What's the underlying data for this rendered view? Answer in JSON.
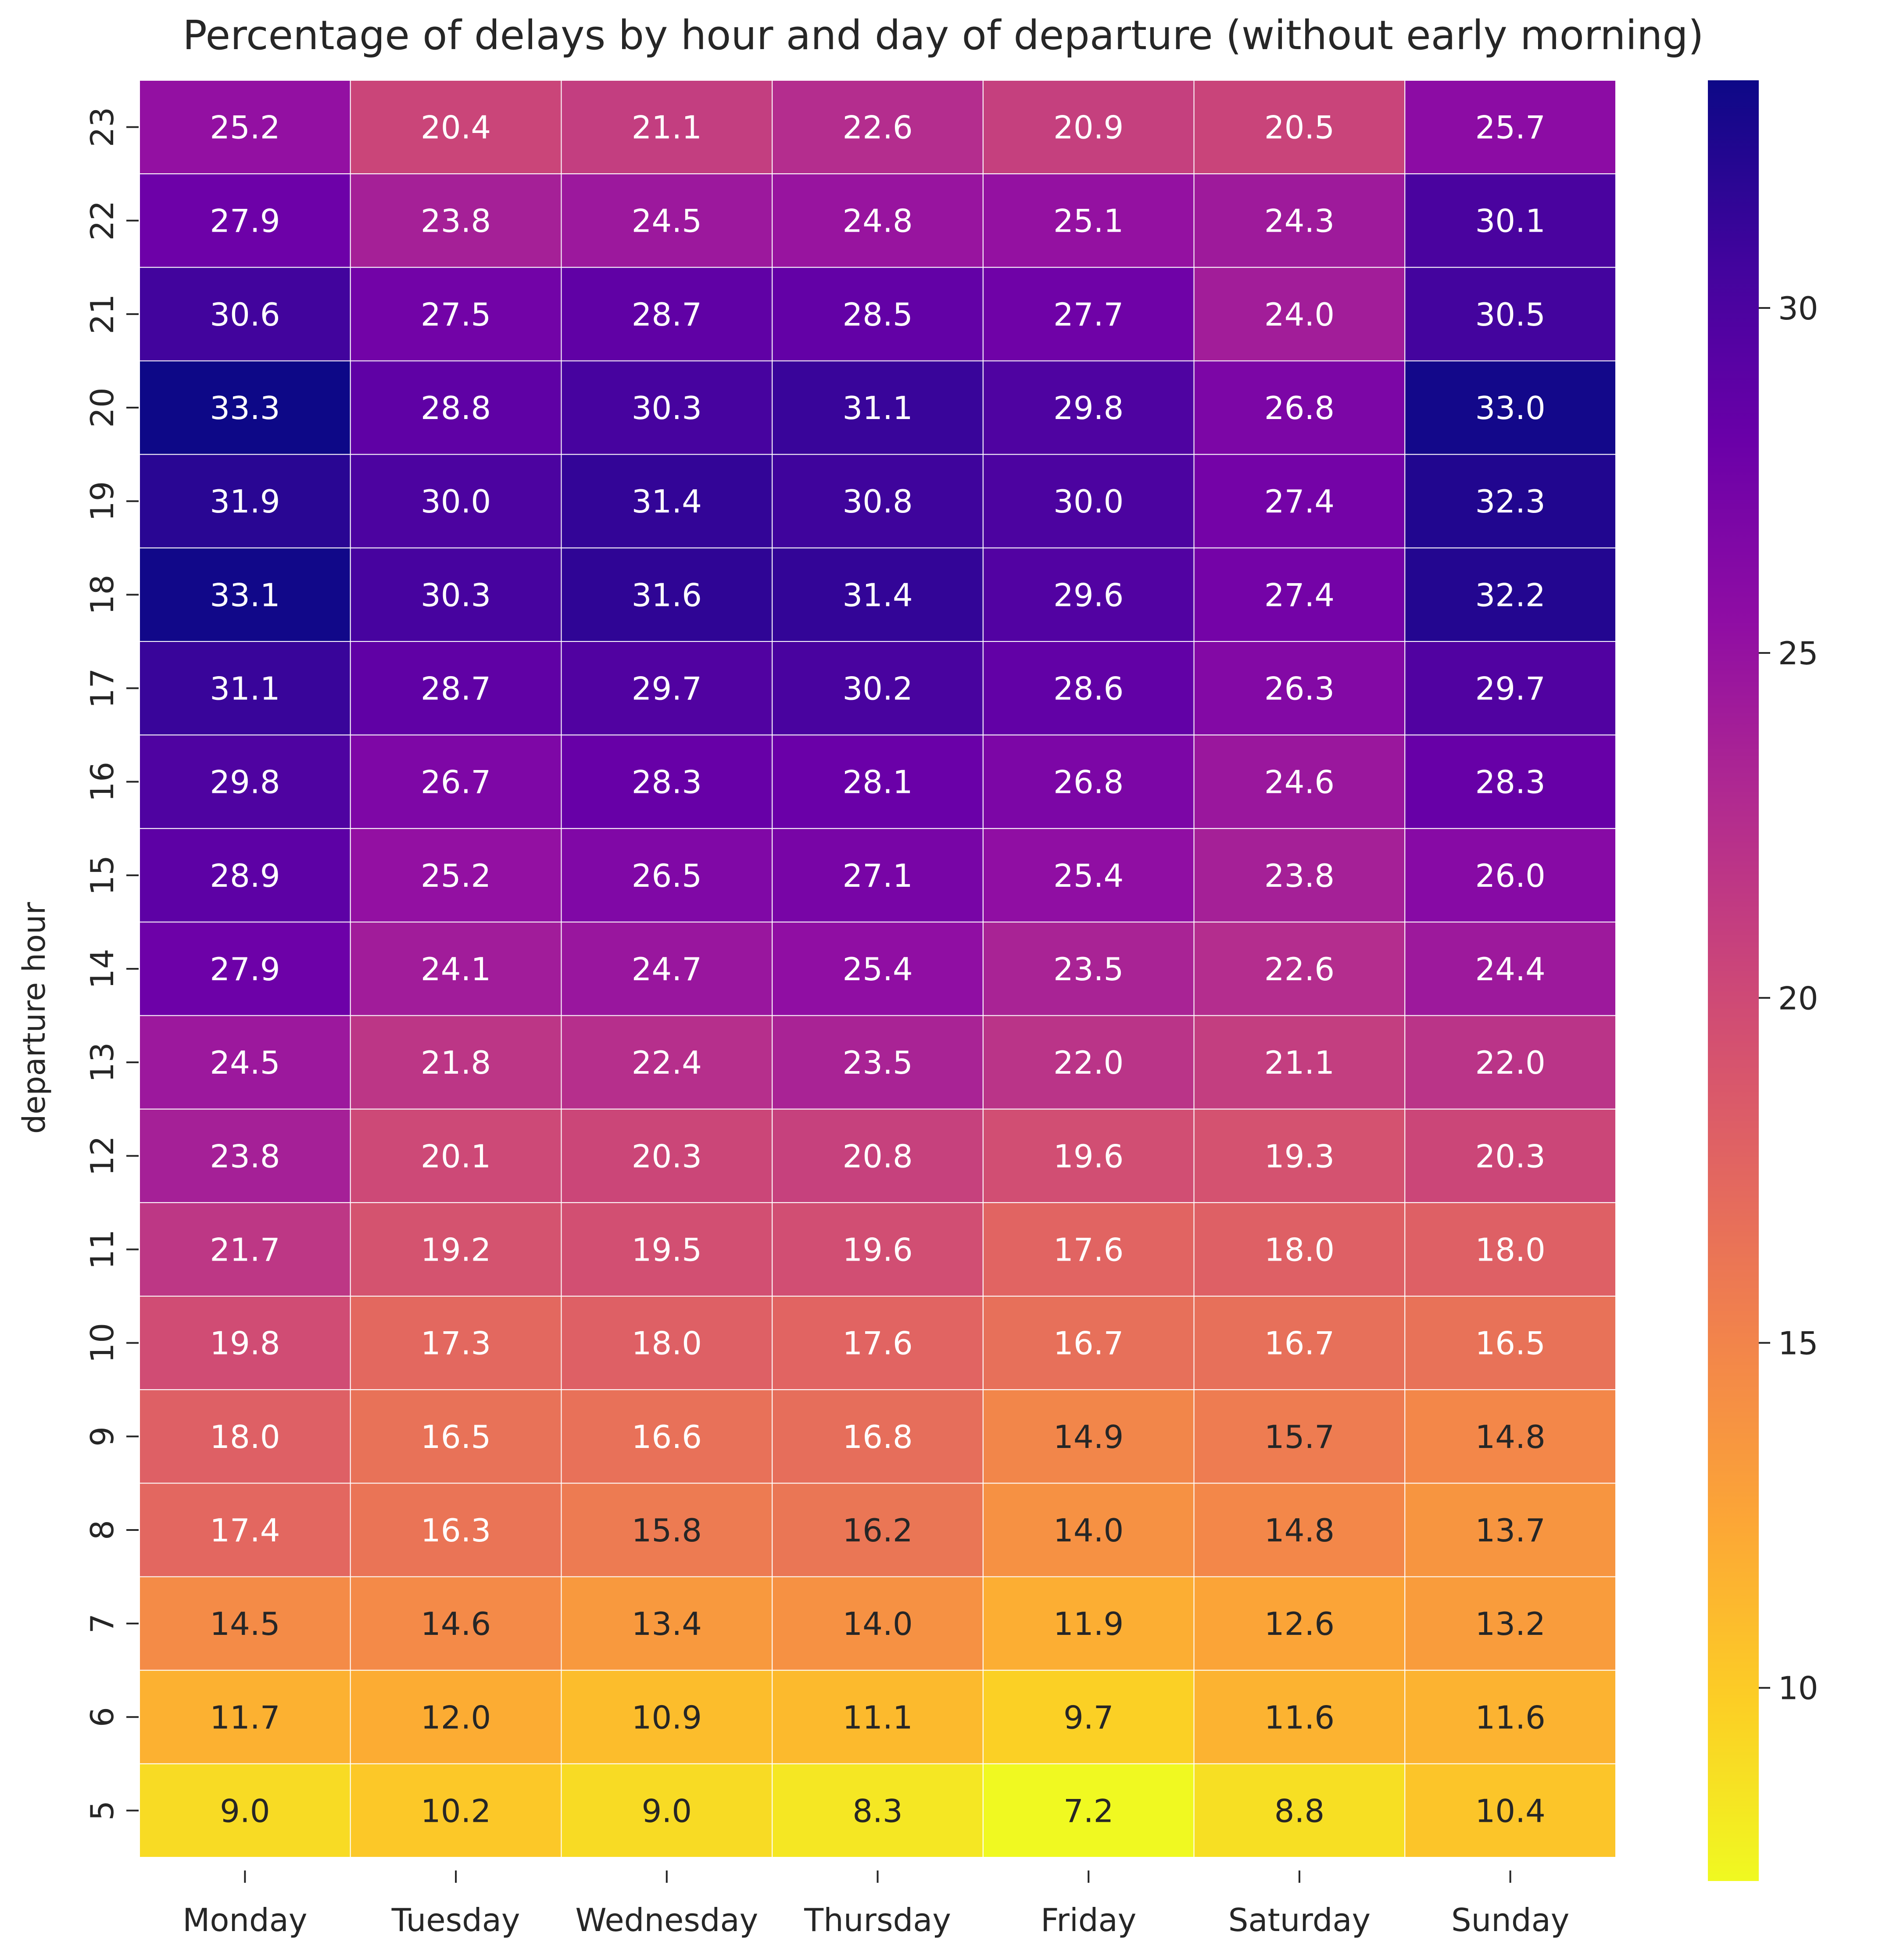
{
  "chart_data": {
    "type": "heatmap",
    "title": "Percentage of delays by hour and day of departure (without early morning)",
    "xlabel": "",
    "ylabel": "departure hour",
    "colormap": "plasma_r",
    "value_range": [
      7.2,
      33.3
    ],
    "colorbar_ticks": [
      10,
      15,
      20,
      25,
      30
    ],
    "x_categories": [
      "Monday",
      "Tuesday",
      "Wednesday",
      "Thursday",
      "Friday",
      "Saturday",
      "Sunday"
    ],
    "y_categories": [
      "23",
      "22",
      "21",
      "20",
      "19",
      "18",
      "17",
      "16",
      "15",
      "14",
      "13",
      "12",
      "11",
      "10",
      "9",
      "8",
      "7",
      "6",
      "5"
    ],
    "values": [
      [
        25.2,
        20.4,
        21.1,
        22.6,
        20.9,
        20.5,
        25.7
      ],
      [
        27.9,
        23.8,
        24.5,
        24.8,
        25.1,
        24.3,
        30.1
      ],
      [
        30.6,
        27.5,
        28.7,
        28.5,
        27.7,
        24.0,
        30.5
      ],
      [
        33.3,
        28.8,
        30.3,
        31.1,
        29.8,
        26.8,
        33.0
      ],
      [
        31.9,
        30.0,
        31.4,
        30.8,
        30.0,
        27.4,
        32.3
      ],
      [
        33.1,
        30.3,
        31.6,
        31.4,
        29.6,
        27.4,
        32.2
      ],
      [
        31.1,
        28.7,
        29.7,
        30.2,
        28.6,
        26.3,
        29.7
      ],
      [
        29.8,
        26.7,
        28.3,
        28.1,
        26.8,
        24.6,
        28.3
      ],
      [
        28.9,
        25.2,
        26.5,
        27.1,
        25.4,
        23.8,
        26.0
      ],
      [
        27.9,
        24.1,
        24.7,
        25.4,
        23.5,
        22.6,
        24.4
      ],
      [
        24.5,
        21.8,
        22.4,
        23.5,
        22.0,
        21.1,
        22.0
      ],
      [
        23.8,
        20.1,
        20.3,
        20.8,
        19.6,
        19.3,
        20.3
      ],
      [
        21.7,
        19.2,
        19.5,
        19.6,
        17.6,
        18.0,
        18.0
      ],
      [
        19.8,
        17.3,
        18.0,
        17.6,
        16.7,
        16.7,
        16.5
      ],
      [
        18.0,
        16.5,
        16.6,
        16.8,
        14.9,
        15.7,
        14.8
      ],
      [
        17.4,
        16.3,
        15.8,
        16.2,
        14.0,
        14.8,
        13.7
      ],
      [
        14.5,
        14.6,
        13.4,
        14.0,
        11.9,
        12.6,
        13.2
      ],
      [
        11.7,
        12.0,
        10.9,
        11.1,
        9.7,
        11.6,
        11.6
      ],
      [
        9.0,
        10.2,
        9.0,
        8.3,
        7.2,
        8.8,
        10.4
      ]
    ],
    "grid": false,
    "legend": "colorbar-right"
  }
}
